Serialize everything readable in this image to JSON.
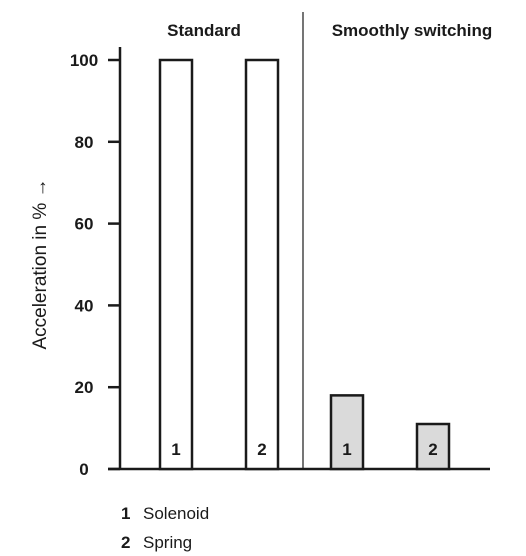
{
  "chart_data": {
    "type": "bar",
    "ylabel": "Acceleration in % →",
    "ylim": [
      0,
      100
    ],
    "yticks": [
      0,
      20,
      40,
      60,
      80,
      100
    ],
    "grid": false,
    "panels": [
      {
        "title": "Standard",
        "categories": [
          "1",
          "2"
        ],
        "values": [
          100,
          100
        ],
        "fill": "#ffffff"
      },
      {
        "title": "Smoothly switching",
        "categories": [
          "1",
          "2"
        ],
        "values": [
          18,
          11
        ],
        "fill": "#dadada"
      }
    ],
    "legend": [
      {
        "key": "1",
        "label": "Solenoid"
      },
      {
        "key": "2",
        "label": "Spring"
      }
    ]
  }
}
